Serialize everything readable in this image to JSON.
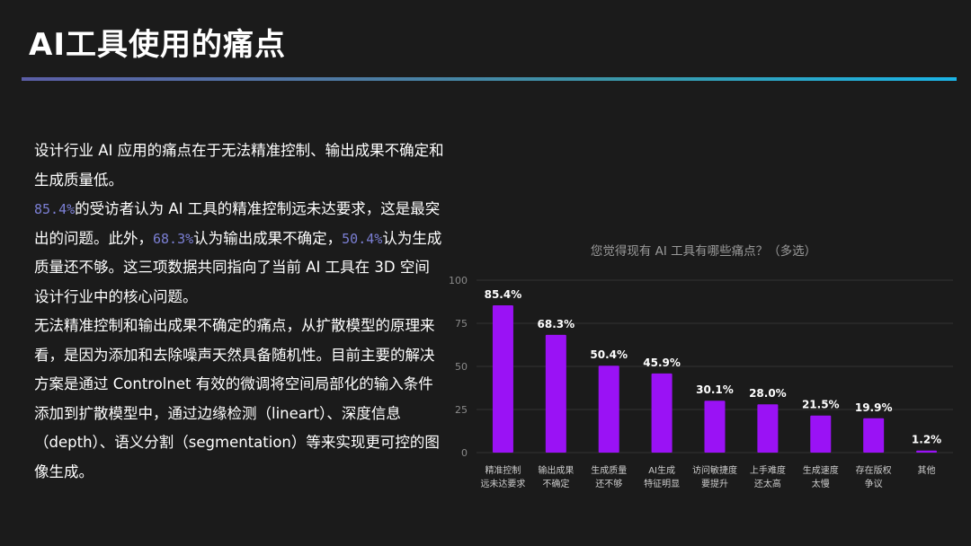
{
  "title": "AI工具使用的痛点",
  "paragraph1": "设计行业 AI 应用的痛点在于无法精准控制、输出成果不确定和生成质量低。",
  "paragraph2": {
    "hl1": "85.4%",
    "t1": "的受访者认为 AI 工具的精准控制远未达要求，这是最突出的问题。此外，",
    "hl2": "68.3%",
    "t2": "认为输出成果不确定，",
    "hl3": "50.4%",
    "t3": "认为生成质量还不够。这三项数据共同指向了当前 AI 工具在 3D 空间设计行业中的核心问题。"
  },
  "paragraph3": "无法精准控制和输出成果不确定的痛点，从扩散模型的原理来看，是因为添加和去除噪声天然具备随机性。目前主要的解决方案是通过 Controlnet 有效的微调将空间局部化的输入条件添加到扩散模型中，通过边缘检测（lineart）、深度信息（depth）、语义分割（segmentation）等来实现更可控的图像生成。",
  "chart_data": {
    "type": "bar",
    "title": "您觉得现有 AI 工具有哪些痛点？（多选）",
    "categories": [
      [
        "精准控制",
        "远未达要求"
      ],
      [
        "输出成果",
        "不确定"
      ],
      [
        "生成质量",
        "还不够"
      ],
      [
        "AI生成",
        "特征明显"
      ],
      [
        "访问敏捷度",
        "要提升"
      ],
      [
        "上手难度",
        "还太高"
      ],
      [
        "生成速度",
        "太慢"
      ],
      [
        "存在版权",
        "争议"
      ],
      [
        "其他"
      ]
    ],
    "values": [
      85.4,
      68.3,
      50.4,
      45.9,
      30.1,
      28.0,
      21.5,
      19.9,
      1.2
    ],
    "value_labels": [
      "85.4%",
      "68.3%",
      "50.4%",
      "45.9%",
      "30.1%",
      "28.0%",
      "21.5%",
      "19.9%",
      "1.2%"
    ],
    "ylim": [
      0,
      100
    ],
    "yticks": [
      0,
      25,
      50,
      75,
      100
    ],
    "grid": true,
    "bar_color": "#9a12f5"
  }
}
